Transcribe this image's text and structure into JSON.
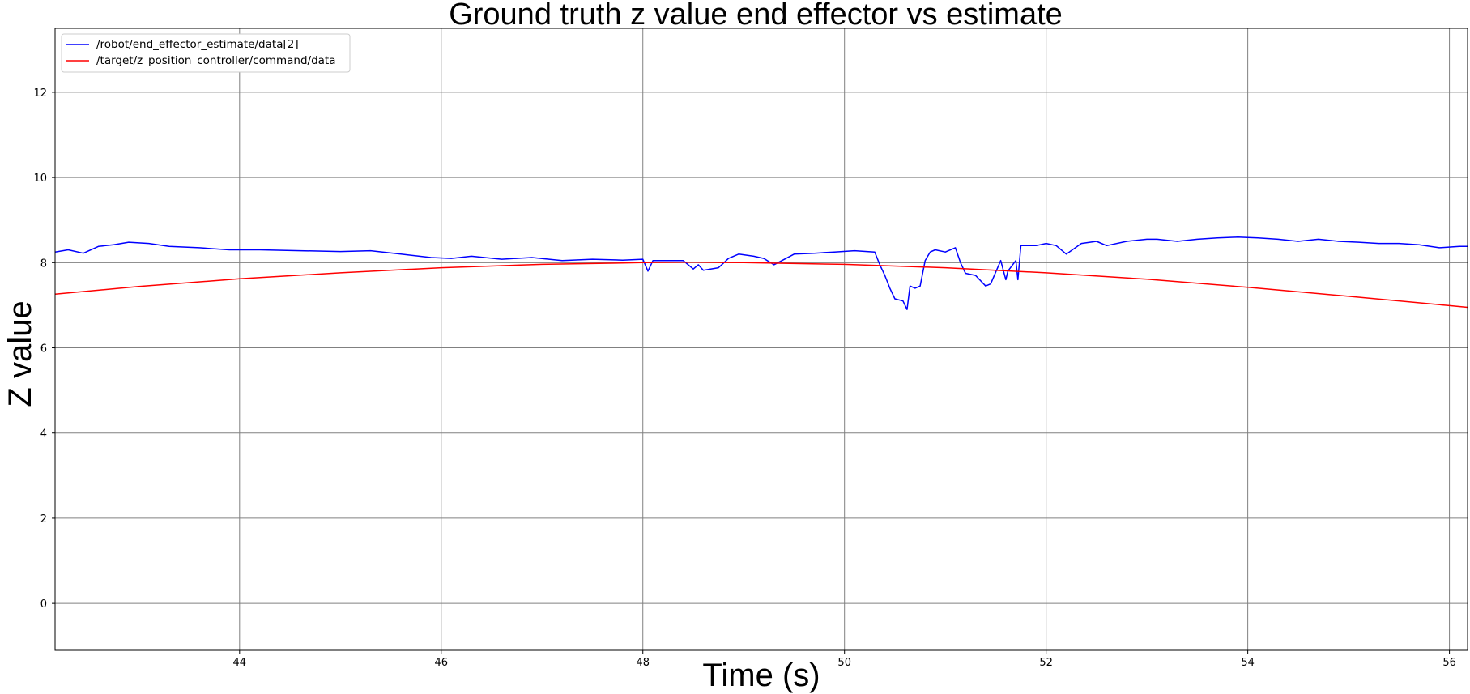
{
  "chart_data": {
    "type": "line",
    "title": "Ground truth z value end effector vs estimate",
    "xlabel": "Time (s)",
    "ylabel": "Z value",
    "xlim": [
      42.17,
      56.18
    ],
    "ylim": [
      -1.1,
      13.5
    ],
    "xticks": [
      44,
      46,
      48,
      50,
      52,
      54,
      56
    ],
    "yticks": [
      0,
      2,
      4,
      6,
      8,
      10,
      12
    ],
    "grid": true,
    "legend_position": "top-left",
    "series": [
      {
        "name": "/robot/end_effector_estimate/data[2]",
        "color": "#0000ff",
        "x": [
          42.17,
          42.3,
          42.45,
          42.6,
          42.75,
          42.9,
          43.1,
          43.3,
          43.6,
          43.9,
          44.2,
          44.6,
          45.0,
          45.3,
          45.6,
          45.9,
          46.1,
          46.3,
          46.6,
          46.9,
          47.2,
          47.5,
          47.8,
          48.0,
          48.05,
          48.1,
          48.4,
          48.5,
          48.55,
          48.6,
          48.75,
          48.85,
          48.95,
          49.1,
          49.2,
          49.3,
          49.5,
          49.7,
          49.9,
          50.1,
          50.3,
          50.35,
          50.4,
          50.45,
          50.5,
          50.58,
          50.62,
          50.65,
          50.7,
          50.75,
          50.8,
          50.85,
          50.9,
          51.0,
          51.1,
          51.15,
          51.2,
          51.3,
          51.4,
          51.45,
          51.55,
          51.6,
          51.62,
          51.7,
          51.72,
          51.75,
          51.9,
          52.0,
          52.1,
          52.2,
          52.35,
          52.5,
          52.6,
          52.8,
          53.0,
          53.1,
          53.3,
          53.5,
          53.7,
          53.9,
          54.1,
          54.3,
          54.5,
          54.7,
          54.9,
          55.1,
          55.3,
          55.5,
          55.7,
          55.9,
          56.1,
          56.18
        ],
        "y": [
          8.25,
          8.3,
          8.22,
          8.38,
          8.42,
          8.48,
          8.45,
          8.38,
          8.35,
          8.3,
          8.3,
          8.28,
          8.26,
          8.28,
          8.2,
          8.12,
          8.1,
          8.15,
          8.08,
          8.12,
          8.05,
          8.08,
          8.06,
          8.08,
          7.8,
          8.05,
          8.05,
          7.85,
          7.95,
          7.82,
          7.88,
          8.1,
          8.2,
          8.15,
          8.1,
          7.95,
          8.2,
          8.22,
          8.25,
          8.28,
          8.25,
          7.95,
          7.7,
          7.4,
          7.15,
          7.1,
          6.9,
          7.45,
          7.4,
          7.45,
          8.05,
          8.25,
          8.3,
          8.25,
          8.35,
          8.0,
          7.75,
          7.7,
          7.45,
          7.5,
          8.05,
          7.6,
          7.8,
          8.05,
          7.6,
          8.4,
          8.4,
          8.45,
          8.4,
          8.2,
          8.45,
          8.5,
          8.4,
          8.5,
          8.55,
          8.55,
          8.5,
          8.55,
          8.58,
          8.6,
          8.58,
          8.55,
          8.5,
          8.55,
          8.5,
          8.48,
          8.45,
          8.45,
          8.42,
          8.35,
          8.38,
          8.38
        ]
      },
      {
        "name": "/target/z_position_controller/command/data",
        "color": "#ff0000",
        "x": [
          42.17,
          43,
          44,
          45,
          46,
          47,
          48,
          48.5,
          49,
          50,
          51,
          52,
          53,
          54,
          55,
          56,
          56.18
        ],
        "y": [
          7.26,
          7.44,
          7.62,
          7.76,
          7.88,
          7.96,
          8.0,
          8.01,
          8.0,
          7.96,
          7.88,
          7.76,
          7.61,
          7.42,
          7.21,
          6.99,
          6.95
        ]
      }
    ]
  }
}
